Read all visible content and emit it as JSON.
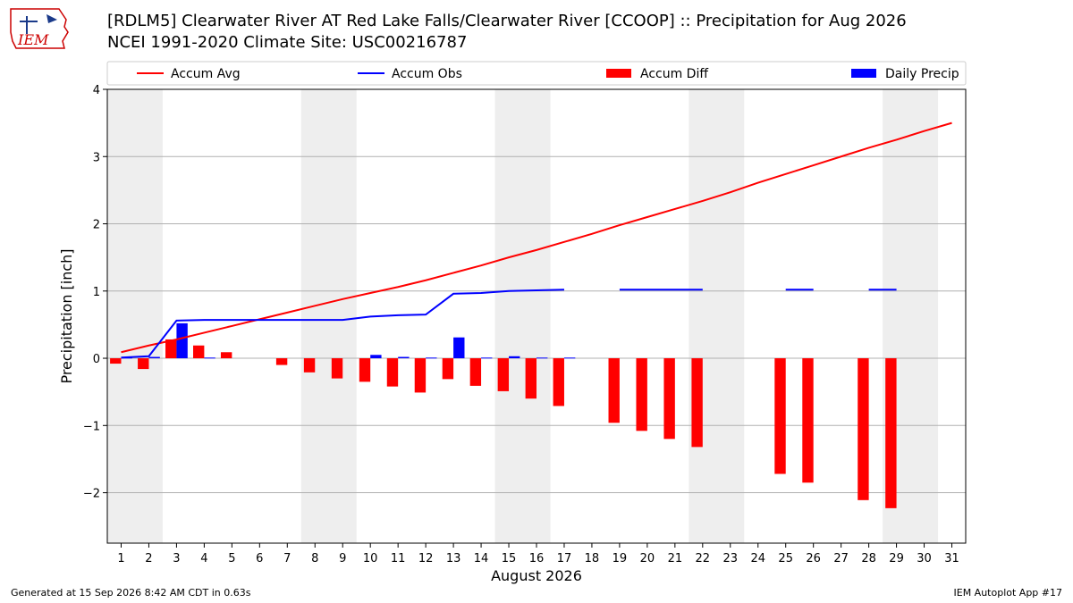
{
  "header": {
    "title_line1": "[RDLM5] Clearwater River  AT Red Lake Falls/Clearwater River [CCOOP] :: Precipitation for Aug 2026",
    "title_line2": "NCEI 1991-2020 Climate Site: USC00216787",
    "logo_text": "IEM"
  },
  "footer": {
    "left": "Generated at 15 Sep 2026 8:42 AM CDT in 0.63s",
    "right": "IEM Autoplot App #17"
  },
  "colors": {
    "accum_avg": "#ff0000",
    "accum_obs": "#0000ff",
    "accum_diff": "#ff0000",
    "daily_precip": "#0000ff",
    "weekend_shade": "#eeeeee",
    "grid": "#b0b0b0"
  },
  "chart_data": {
    "type": "bar",
    "xlabel": "August 2026",
    "ylabel": "Precipitation [inch]",
    "xlim": [
      0.5,
      31.5
    ],
    "ylim": [
      -2.75,
      4
    ],
    "yticks": [
      -2,
      -1,
      0,
      1,
      2,
      3,
      4
    ],
    "x": [
      1,
      2,
      3,
      4,
      5,
      6,
      7,
      8,
      9,
      10,
      11,
      12,
      13,
      14,
      15,
      16,
      17,
      18,
      19,
      20,
      21,
      22,
      23,
      24,
      25,
      26,
      27,
      28,
      29,
      30,
      31
    ],
    "legend": {
      "placement": "top",
      "entries": [
        {
          "label": "Accum Avg",
          "kind": "line",
          "color": "#ff0000"
        },
        {
          "label": "Accum Obs",
          "kind": "line",
          "color": "#0000ff"
        },
        {
          "label": "Accum Diff",
          "kind": "bar",
          "color": "#ff0000"
        },
        {
          "label": "Daily Precip",
          "kind": "bar",
          "color": "#0000ff"
        }
      ]
    },
    "weekend_days": [
      [
        1,
        2
      ],
      [
        8,
        9
      ],
      [
        15,
        16
      ],
      [
        22,
        23
      ],
      [
        29,
        30
      ]
    ],
    "grid": true,
    "series": [
      {
        "name": "Accum Avg",
        "kind": "line",
        "values": [
          0.09,
          0.19,
          0.28,
          0.38,
          0.48,
          0.58,
          0.68,
          0.78,
          0.88,
          0.97,
          1.06,
          1.16,
          1.27,
          1.38,
          1.5,
          1.61,
          1.73,
          1.85,
          1.98,
          2.1,
          2.22,
          2.34,
          2.47,
          2.61,
          2.74,
          2.87,
          3.0,
          3.13,
          3.25,
          3.38,
          3.5
        ]
      },
      {
        "name": "Accum Obs",
        "kind": "line",
        "values": [
          0.01,
          0.03,
          0.56,
          0.57,
          0.57,
          0.57,
          0.57,
          0.57,
          0.57,
          0.62,
          0.64,
          0.65,
          0.96,
          0.97,
          1.0,
          1.01,
          1.02,
          null,
          1.02,
          1.02,
          1.02,
          1.02,
          null,
          null,
          1.02,
          1.02,
          null,
          1.02,
          1.02,
          null,
          null
        ]
      },
      {
        "name": "Accum Diff",
        "kind": "bar",
        "values": [
          -0.08,
          -0.16,
          0.28,
          0.19,
          0.09,
          null,
          -0.1,
          -0.21,
          -0.3,
          -0.35,
          -0.42,
          -0.51,
          -0.31,
          -0.41,
          -0.49,
          -0.6,
          -0.71,
          null,
          -0.96,
          -1.08,
          -1.2,
          -1.32,
          null,
          null,
          -1.72,
          -1.85,
          null,
          -2.11,
          -2.23,
          null,
          null
        ]
      },
      {
        "name": "Daily Precip",
        "kind": "bar",
        "values": [
          0.01,
          0.02,
          0.52,
          0.01,
          0.0,
          null,
          null,
          null,
          null,
          0.05,
          0.02,
          0.01,
          0.31,
          0.01,
          0.03,
          0.01,
          0.01,
          null,
          null,
          null,
          null,
          null,
          null,
          null,
          null,
          null,
          null,
          null,
          null,
          null,
          null
        ]
      }
    ]
  }
}
